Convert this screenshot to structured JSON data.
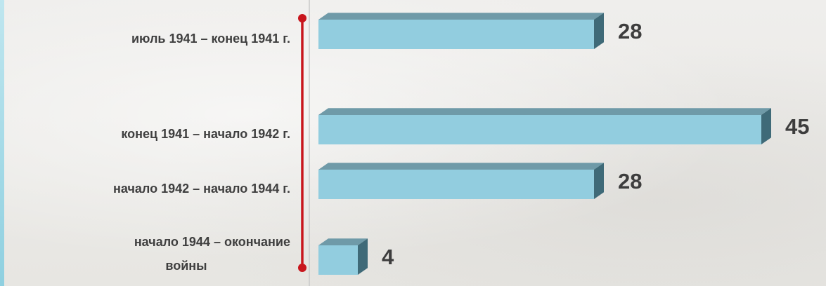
{
  "chart_data": {
    "type": "bar",
    "orientation": "horizontal",
    "categories": [
      [
        "июль 1941 – конец 1941 г."
      ],
      [
        "конец 1941 – начало 1942 г."
      ],
      [
        "начало 1942 – начало 1944 г."
      ],
      [
        "начало 1944 – окончание",
        "войны"
      ]
    ],
    "values": [
      28,
      45,
      28,
      4
    ],
    "value_labels": [
      "28",
      "45",
      "28",
      "4"
    ],
    "title": "",
    "xlabel": "",
    "ylabel": "",
    "xlim": [
      0,
      45
    ],
    "grid": false,
    "legend": "none",
    "colors": {
      "bar_front": "#92cddf",
      "bar_top": "#6f9aa8",
      "bar_side": "#3f6a78",
      "axis_line": "#c8161d",
      "divider": "#c9c9c9",
      "label_text": "#3f3f3f"
    }
  }
}
